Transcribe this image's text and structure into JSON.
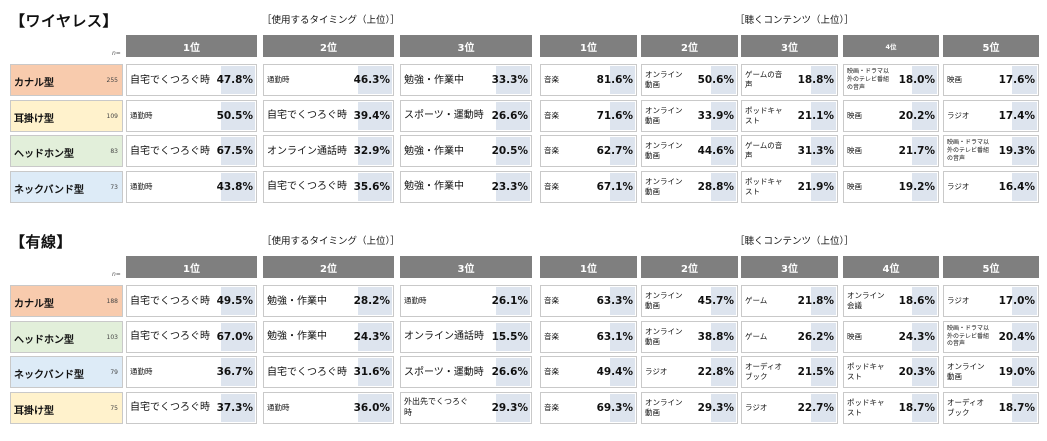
{
  "n_label": "n=",
  "sections": [
    {
      "title": "【ワイヤレス】",
      "timing_title": "［使用するタイミング（上位）］",
      "content_title": "［聴くコンテンツ（上位）］",
      "timing_headers": [
        "1位",
        "2位",
        "3位"
      ],
      "content_headers": [
        "1位",
        "2位",
        "3位",
        "4位",
        "5位"
      ],
      "rows": [
        {
          "name": "カナル型",
          "n": "255",
          "color": "#f8cbad",
          "timing": [
            [
              "自宅でくつろぐ時",
              "47.8%"
            ],
            [
              "通勤時",
              "46.3%"
            ],
            [
              "勉強・作業中",
              "33.3%"
            ]
          ],
          "content": [
            [
              "音楽",
              "81.6%"
            ],
            [
              "オンライン\n動画",
              "50.6%"
            ],
            [
              "ゲームの音\n声",
              "18.8%"
            ],
            [
              "映画・ドラマ以\n外のテレビ番組\nの音声",
              "18.0%"
            ],
            [
              "映画",
              "17.6%"
            ]
          ]
        },
        {
          "name": "耳掛け型",
          "n": "109",
          "color": "#fff2cc",
          "timing": [
            [
              "通勤時",
              "50.5%"
            ],
            [
              "自宅でくつろぐ時",
              "39.4%"
            ],
            [
              "スポーツ・運動時",
              "26.6%"
            ]
          ],
          "content": [
            [
              "音楽",
              "71.6%"
            ],
            [
              "オンライン\n動画",
              "33.9%"
            ],
            [
              "ポッドキャ\nスト",
              "21.1%"
            ],
            [
              "映画",
              "20.2%"
            ],
            [
              "ラジオ",
              "17.4%"
            ]
          ]
        },
        {
          "name": "ヘッドホン型",
          "n": "83",
          "color": "#e2efda",
          "timing": [
            [
              "自宅でくつろぐ時",
              "67.5%"
            ],
            [
              "オンライン通話時",
              "32.9%"
            ],
            [
              "勉強・作業中",
              "20.5%"
            ]
          ],
          "content": [
            [
              "音楽",
              "62.7%"
            ],
            [
              "オンライン\n動画",
              "44.6%"
            ],
            [
              "ゲームの音\n声",
              "31.3%"
            ],
            [
              "映画",
              "21.7%"
            ],
            [
              "映画・ドラマ以\n外のテレビ番組\nの音声",
              "19.3%"
            ]
          ]
        },
        {
          "name": "ネックバンド型",
          "n": "73",
          "color": "#ddebf7",
          "timing": [
            [
              "通勤時",
              "43.8%"
            ],
            [
              "自宅でくつろぐ時",
              "35.6%"
            ],
            [
              "勉強・作業中",
              "23.3%"
            ]
          ],
          "content": [
            [
              "音楽",
              "67.1%"
            ],
            [
              "オンライン\n動画",
              "28.8%"
            ],
            [
              "ポッドキャ\nスト",
              "21.9%"
            ],
            [
              "映画",
              "19.2%"
            ],
            [
              "ラジオ",
              "16.4%"
            ]
          ]
        }
      ]
    },
    {
      "title": "【有線】",
      "timing_title": "［使用するタイミング（上位）］",
      "content_title": "［聴くコンテンツ（上位）］",
      "timing_headers": [
        "1位",
        "2位",
        "3位"
      ],
      "content_headers": [
        "1位",
        "2位",
        "3位",
        "4位",
        "5位"
      ],
      "rows": [
        {
          "name": "カナル型",
          "n": "188",
          "color": "#f8cbad",
          "timing": [
            [
              "自宅でくつろぐ時",
              "49.5%"
            ],
            [
              "勉強・作業中",
              "28.2%"
            ],
            [
              "通勤時",
              "26.1%"
            ]
          ],
          "content": [
            [
              "音楽",
              "63.3%"
            ],
            [
              "オンライン\n動画",
              "45.7%"
            ],
            [
              "ゲーム",
              "21.8%"
            ],
            [
              "オンライン\n会議",
              "18.6%"
            ],
            [
              "ラジオ",
              "17.0%"
            ]
          ]
        },
        {
          "name": "ヘッドホン型",
          "n": "103",
          "color": "#e2efda",
          "timing": [
            [
              "自宅でくつろぐ時",
              "67.0%"
            ],
            [
              "勉強・作業中",
              "24.3%"
            ],
            [
              "オンライン通話時",
              "15.5%"
            ]
          ],
          "content": [
            [
              "音楽",
              "63.1%"
            ],
            [
              "オンライン\n動画",
              "38.8%"
            ],
            [
              "ゲーム",
              "26.2%"
            ],
            [
              "映画",
              "24.3%"
            ],
            [
              "映画・ドラマ以\n外のテレビ番組\nの音声",
              "20.4%"
            ]
          ]
        },
        {
          "name": "ネックバンド型",
          "n": "79",
          "color": "#ddebf7",
          "timing": [
            [
              "通勤時",
              "36.7%"
            ],
            [
              "自宅でくつろぐ時",
              "31.6%"
            ],
            [
              "スポーツ・運動時",
              "26.6%"
            ]
          ],
          "content": [
            [
              "音楽",
              "49.4%"
            ],
            [
              "ラジオ",
              "22.8%"
            ],
            [
              "オーディオ\nブック",
              "21.5%"
            ],
            [
              "ポッドキャ\nスト",
              "20.3%"
            ],
            [
              "オンライン\n動画",
              "19.0%"
            ]
          ]
        },
        {
          "name": "耳掛け型",
          "n": "75",
          "color": "#fff2cc",
          "timing": [
            [
              "自宅でくつろぐ時",
              "37.3%"
            ],
            [
              "通勤時",
              "36.0%"
            ],
            [
              "外出先でくつろぐ\n時",
              "29.3%"
            ]
          ],
          "content": [
            [
              "音楽",
              "69.3%"
            ],
            [
              "オンライン\n動画",
              "29.3%"
            ],
            [
              "ラジオ",
              "22.7%"
            ],
            [
              "ポッドキャ\nスト",
              "18.7%"
            ],
            [
              "オーディオ\nブック",
              "18.7%"
            ]
          ]
        }
      ]
    }
  ]
}
